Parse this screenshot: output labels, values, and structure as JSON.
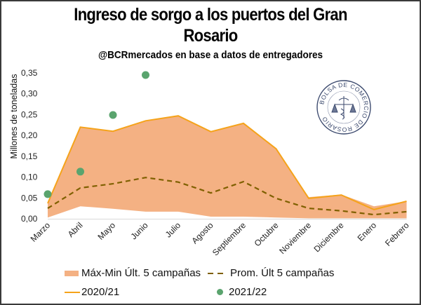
{
  "title_line1": "Ingreso de sorgo a los puertos del Gran",
  "title_line2": "Rosario",
  "subtitle": "@BCRmercados en base a datos de entregadores",
  "logo": {
    "name": "Bolsa de Comercio de Rosario seal",
    "text": "BOLSA DE COMERCIO DE ROSARIO"
  },
  "colors": {
    "band": "#f4b183",
    "line_2020_21": "#f5a31a",
    "avg": "#7f6000",
    "dots_2021_22": "#5aa46e",
    "border": "#3a3a3a"
  },
  "chart_data": {
    "type": "area",
    "title": "Ingreso de sorgo a los puertos del Gran Rosario",
    "subtitle": "@BCRmercados en base a datos de entregadores",
    "xlabel": "",
    "ylabel": "Millones de toneladas",
    "ylim": [
      0,
      0.35
    ],
    "yticks": [
      0,
      0.05,
      0.1,
      0.15,
      0.2,
      0.25,
      0.3,
      0.35
    ],
    "ytick_labels": [
      "0,00",
      "0,05",
      "0,10",
      "0,15",
      "0,20",
      "0,25",
      "0,30",
      "0,35"
    ],
    "categories": [
      "Marzo",
      "Abril",
      "Mayo",
      "Junio",
      "Julio",
      "Agosto",
      "Septiembre",
      "Octubre",
      "Noviembre",
      "Diciembre",
      "Enero",
      "Febrero"
    ],
    "grid": false,
    "legend_position": "bottom",
    "series": [
      {
        "name": "Máx-Min Últ. 5 campañas",
        "kind": "band",
        "max": [
          0.037,
          0.22,
          0.21,
          0.235,
          0.247,
          0.209,
          0.229,
          0.168,
          0.052,
          0.058,
          0.03,
          0.042
        ],
        "min": [
          0.003,
          0.03,
          0.024,
          0.017,
          0.017,
          0.005,
          0.005,
          0.003,
          0.001,
          0.001,
          0.001,
          0.001
        ]
      },
      {
        "name": "Prom. Últ 5 campañas",
        "kind": "dashed-line",
        "values": [
          0.025,
          0.074,
          0.084,
          0.099,
          0.088,
          0.062,
          0.089,
          0.049,
          0.025,
          0.019,
          0.01,
          0.017
        ]
      },
      {
        "name": "2020/21",
        "kind": "line",
        "values": [
          0.037,
          0.22,
          0.21,
          0.235,
          0.247,
          0.209,
          0.229,
          0.168,
          0.049,
          0.057,
          0.022,
          0.042
        ]
      },
      {
        "name": "2021/22",
        "kind": "scatter",
        "values": [
          0.059,
          0.113,
          0.249,
          0.345,
          null,
          null,
          null,
          null,
          null,
          null,
          null,
          null
        ]
      }
    ]
  }
}
